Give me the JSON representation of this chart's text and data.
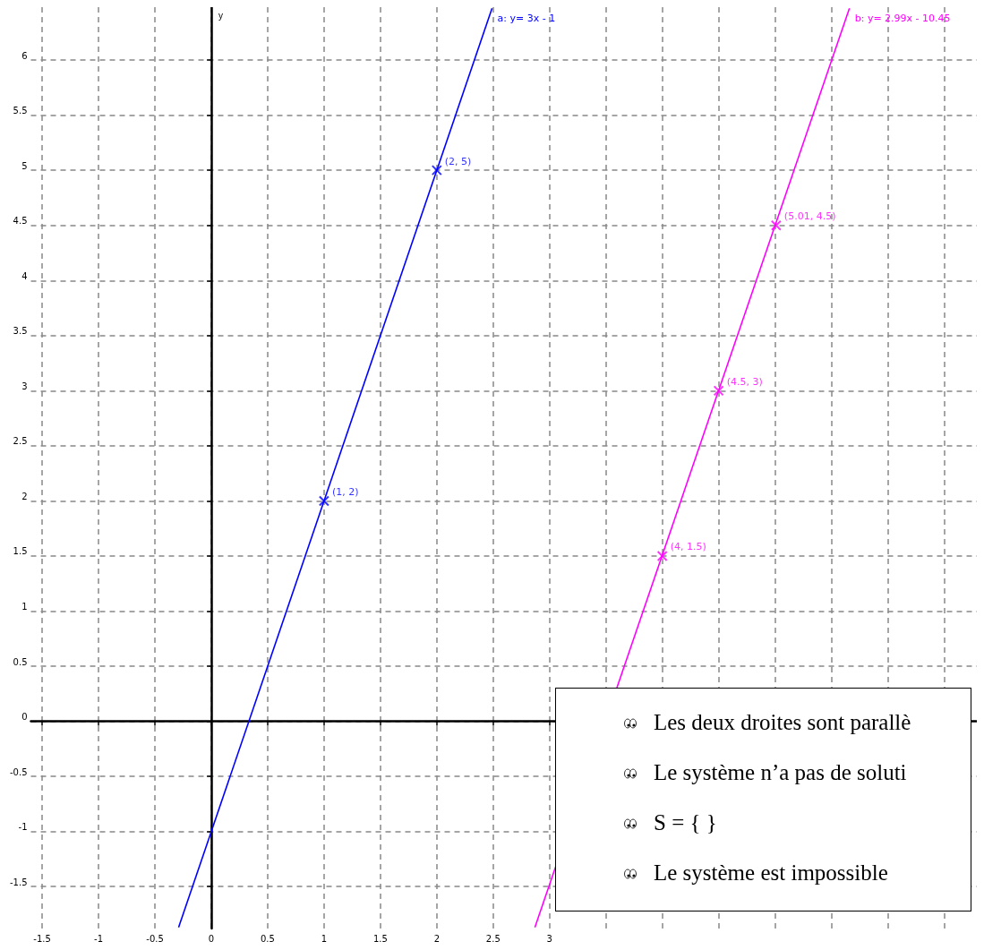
{
  "chart_data": {
    "type": "line",
    "ylabel": "y",
    "xlim": [
      -1.6,
      6.79
    ],
    "ylim": [
      -1.88,
      6.48
    ],
    "xticks": [
      -1.5,
      -1,
      -0.5,
      0,
      0.5,
      1,
      1.5,
      2,
      2.5,
      3,
      {
        "value": 3.5,
        "label": null
      },
      {
        "value": 4,
        "label": null
      },
      {
        "value": 4.5,
        "label": null
      },
      {
        "value": 5,
        "label": null
      },
      {
        "value": 5.5,
        "label": null
      },
      {
        "value": 6,
        "label": null
      },
      {
        "value": 6.5,
        "label": null
      }
    ],
    "yticks": [
      -1.5,
      -1,
      -0.5,
      0,
      0.5,
      1,
      1.5,
      2,
      2.5,
      3,
      3.5,
      4,
      4.5,
      5,
      5.5,
      6
    ],
    "grid": true,
    "series": [
      {
        "color": "#0000ff",
        "marker": "none",
        "x": [
          -0.29,
          2.49
        ],
        "values": [
          -1.87,
          6.47
        ]
      },
      {
        "type": "scatter",
        "color": "#0000ff",
        "marker": "cross",
        "x": [
          1,
          2
        ],
        "values": [
          2,
          5
        ],
        "value_labels": [
          "(1, 2)",
          "(2, 5)"
        ]
      },
      {
        "color": "#ff00ff",
        "marker": "none",
        "x": [
          2.87,
          5.66
        ],
        "values": [
          -1.87,
          6.47
        ]
      },
      {
        "type": "scatter",
        "color": "#ff00ff",
        "marker": "cross",
        "x": [
          4,
          4.5,
          5.01
        ],
        "values": [
          1.5,
          3,
          4.5
        ],
        "value_labels": [
          "(4, 1.5)",
          "(4.5, 3)",
          "(5.01, 4.5)"
        ]
      }
    ],
    "annotations": [
      "a: y= 3x - 1",
      "b: y= 2.99x - 10.45",
      "Les deux droites sont parallè",
      "Le système n’a pas de soluti",
      "S = { }",
      "Le système est impossible"
    ]
  }
}
